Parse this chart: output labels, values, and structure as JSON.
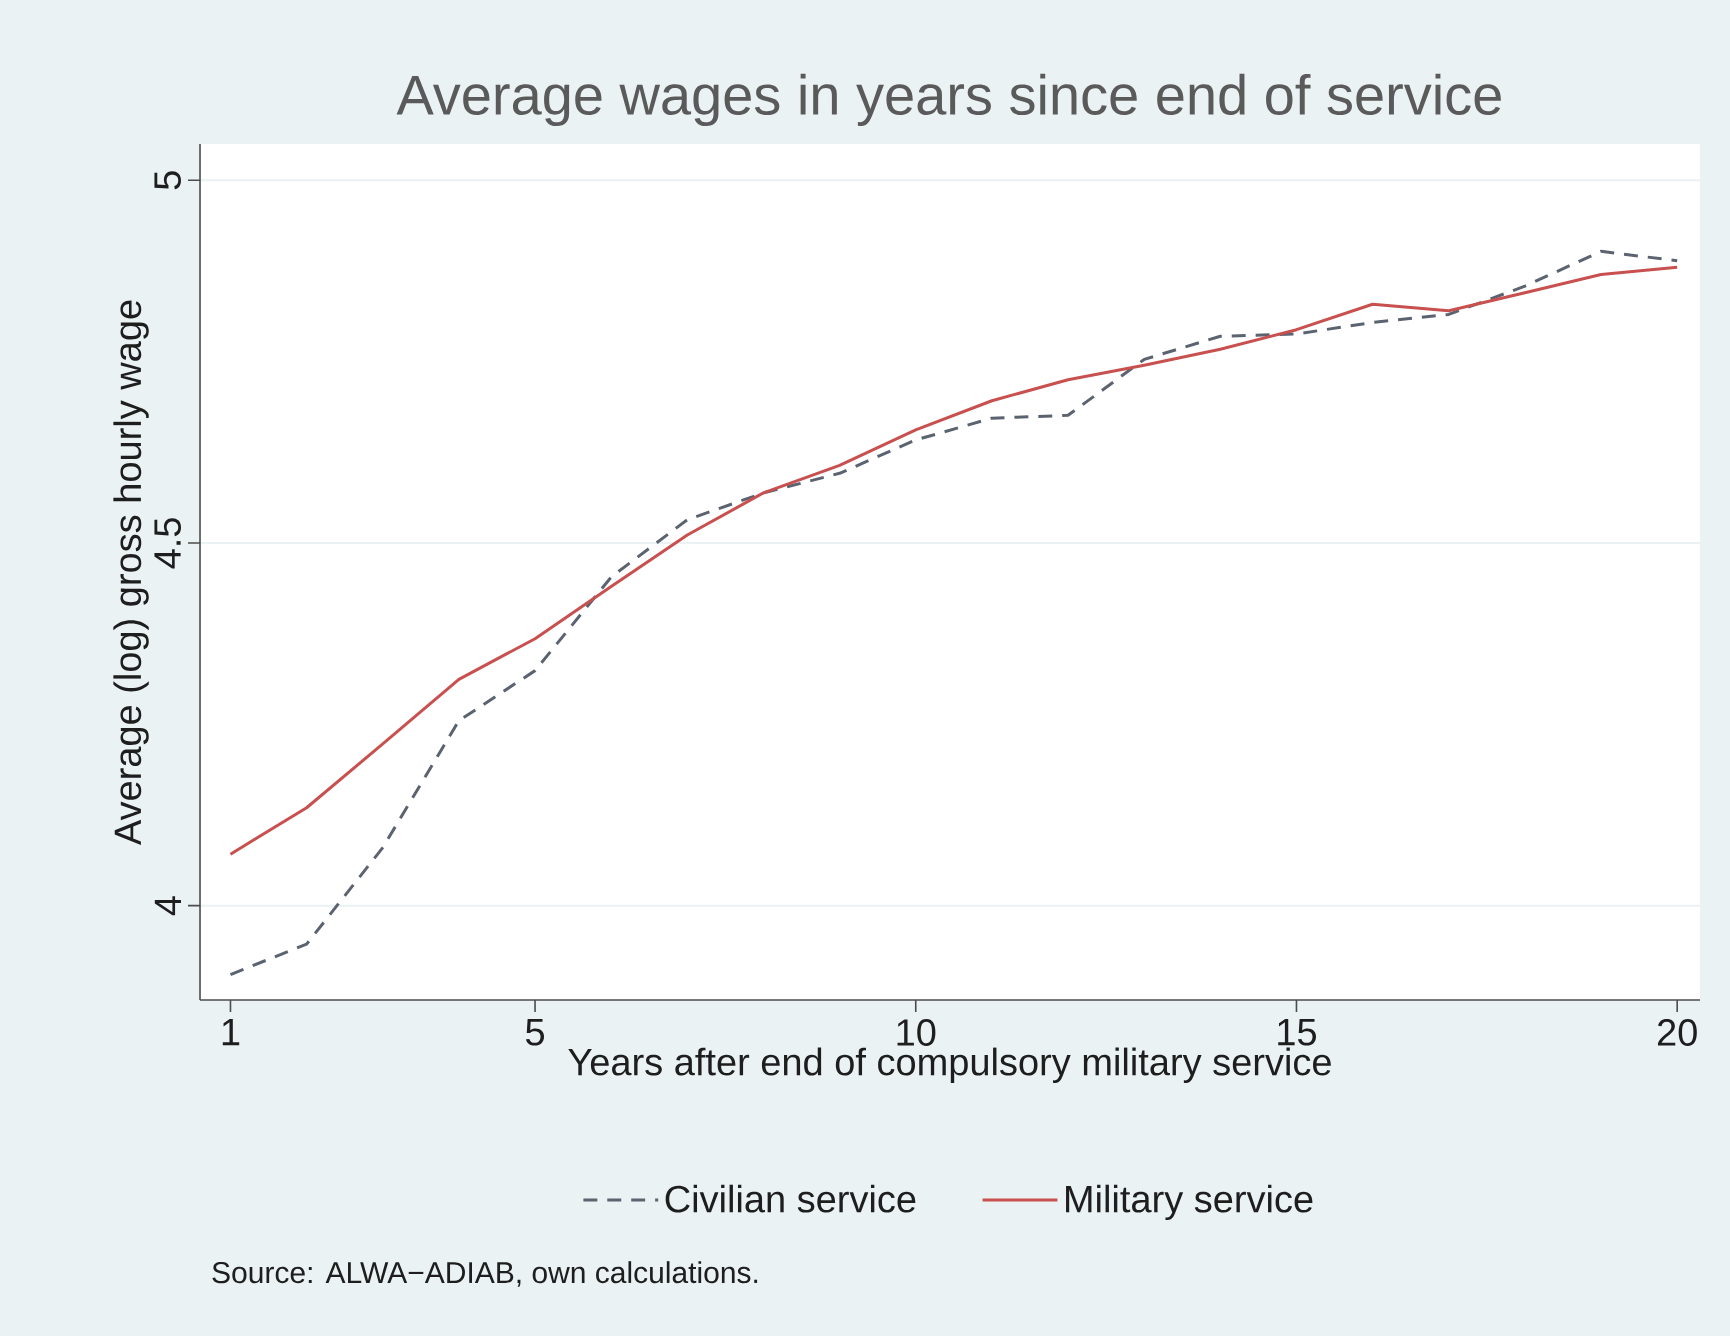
{
  "chart_data": {
    "type": "line",
    "title": "Average wages in years since end of service",
    "xlabel": "Years after end of compulsory military service",
    "ylabel": "Average (log) gross hourly wage",
    "x": [
      1,
      2,
      3,
      4,
      5,
      6,
      7,
      8,
      9,
      10,
      11,
      12,
      13,
      14,
      15,
      16,
      17,
      18,
      19,
      20
    ],
    "series": [
      {
        "name": "Civilian service",
        "color": "#5c6370",
        "line_style": "dashed",
        "values": [
          3.905,
          3.947,
          4.08,
          4.255,
          4.324,
          4.453,
          4.532,
          4.569,
          4.596,
          4.642,
          4.672,
          4.676,
          4.753,
          4.785,
          4.788,
          4.804,
          4.815,
          4.854,
          4.902,
          4.889
        ]
      },
      {
        "name": "Military service",
        "color": "#c8504f",
        "line_style": "solid",
        "values": [
          4.071,
          4.135,
          4.223,
          4.312,
          4.368,
          4.44,
          4.511,
          4.569,
          4.607,
          4.656,
          4.696,
          4.725,
          4.745,
          4.767,
          4.794,
          4.829,
          4.82,
          4.845,
          4.87,
          4.88
        ]
      }
    ],
    "xlim": [
      0.6,
      20.3
    ],
    "ylim": [
      3.87,
      5.05
    ],
    "xticks": [
      1,
      5,
      10,
      15,
      20
    ],
    "yticks": [
      4,
      4.5,
      5
    ],
    "grid": "y",
    "legend": "bottom",
    "marker": "none",
    "annotations": [
      "Source: ALWA−ADIAB, own calculations."
    ]
  }
}
